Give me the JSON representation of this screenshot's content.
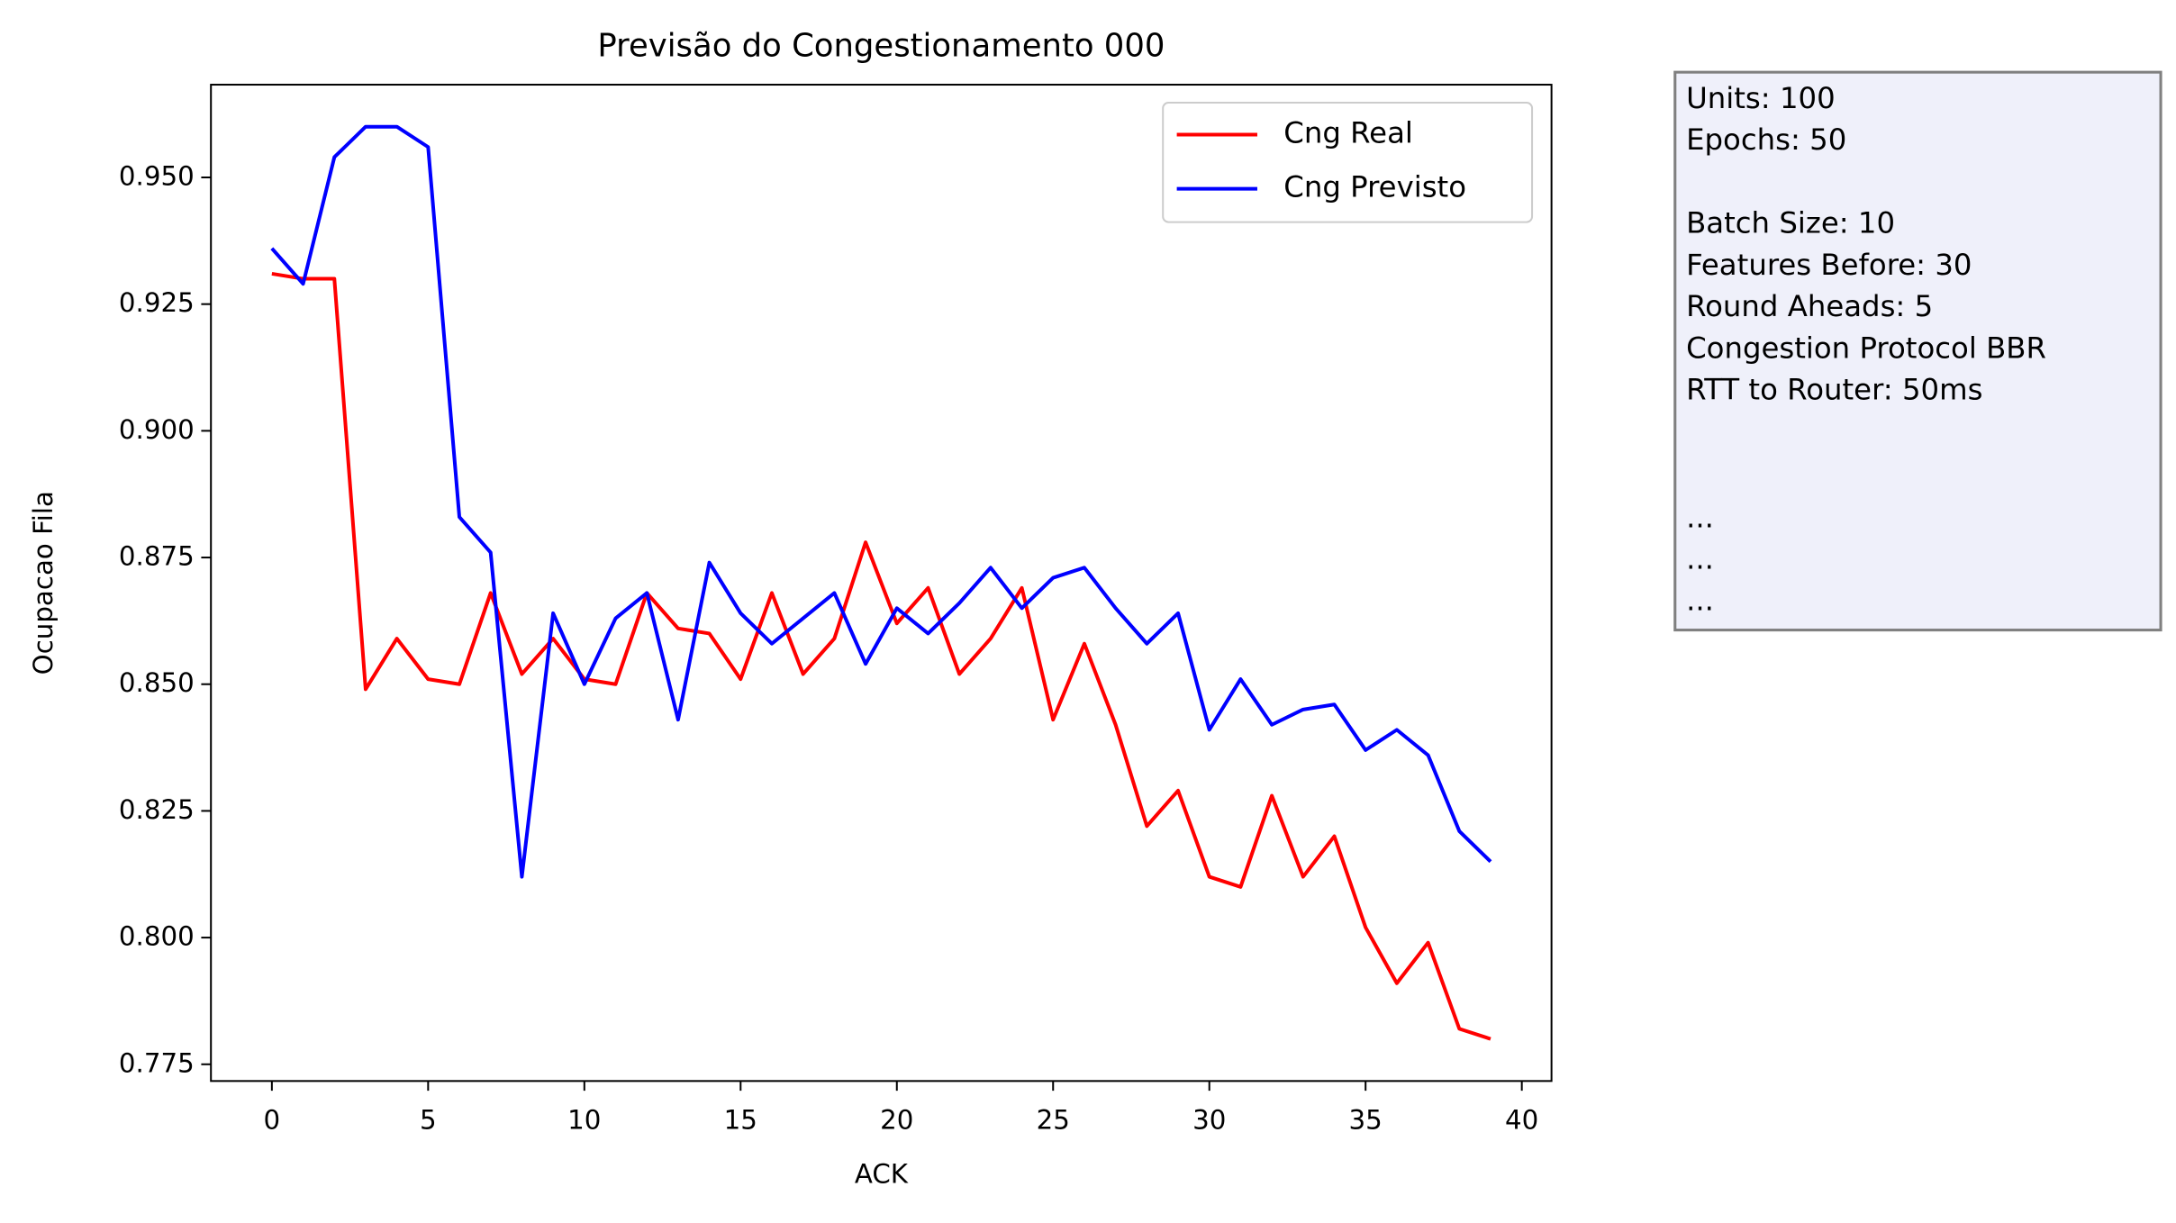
{
  "chart_data": {
    "type": "line",
    "title": "Previsão do Congestionamento 000",
    "x_label": "ACK",
    "y_label": "Ocupacao Fila",
    "x": [
      0,
      1,
      2,
      3,
      4,
      5,
      6,
      7,
      8,
      9,
      10,
      11,
      12,
      13,
      14,
      15,
      16,
      17,
      18,
      19,
      20,
      21,
      22,
      23,
      24,
      25,
      26,
      27,
      28,
      29,
      30,
      31,
      32,
      33,
      34,
      35,
      36,
      37,
      38,
      39
    ],
    "series": [
      {
        "name": "Cng Real",
        "color": "#ff0000",
        "values": [
          0.931,
          0.93,
          0.93,
          0.849,
          0.859,
          0.851,
          0.85,
          0.868,
          0.852,
          0.859,
          0.851,
          0.85,
          0.868,
          0.861,
          0.86,
          0.851,
          0.868,
          0.852,
          0.859,
          0.878,
          0.862,
          0.869,
          0.852,
          0.859,
          0.869,
          0.843,
          0.858,
          0.842,
          0.822,
          0.829,
          0.812,
          0.81,
          0.828,
          0.812,
          0.82,
          0.802,
          0.791,
          0.799,
          0.782,
          0.78
        ]
      },
      {
        "name": "Cng Previsto",
        "color": "#0000ff",
        "values": [
          0.936,
          0.929,
          0.954,
          0.96,
          0.96,
          0.956,
          0.883,
          0.876,
          0.812,
          0.864,
          0.85,
          0.863,
          0.868,
          0.843,
          0.874,
          0.864,
          0.858,
          0.863,
          0.868,
          0.854,
          0.865,
          0.86,
          0.866,
          0.873,
          0.865,
          0.871,
          0.873,
          0.865,
          0.858,
          0.864,
          0.841,
          0.851,
          0.842,
          0.845,
          0.846,
          0.837,
          0.841,
          0.836,
          0.821,
          0.815
        ]
      }
    ],
    "xlim": [
      -1.95,
      40.95
    ],
    "xticks": [
      0,
      5,
      10,
      15,
      20,
      25,
      30,
      35,
      40
    ],
    "ylim": [
      0.7717,
      0.9683
    ],
    "yticks": [
      0.775,
      {
        "value": 0.8,
        "label": "0.800"
      },
      0.825,
      {
        "value": 0.85,
        "label": "0.850"
      },
      0.875,
      {
        "value": 0.9,
        "label": "0.900"
      },
      0.925,
      {
        "value": 0.95,
        "label": "0.950"
      }
    ],
    "legend": "upper right",
    "info_box": [
      "Units: 100",
      "Epochs: 50",
      "Batch Size: 10",
      "Features Before: 30",
      "Round Aheads: 5",
      "Congestion Protocol BBR",
      "RTT to Router: 50ms",
      "...",
      "...",
      "..."
    ]
  }
}
